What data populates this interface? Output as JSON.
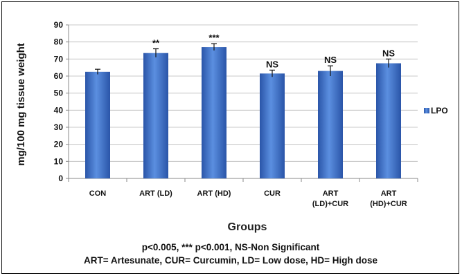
{
  "chart_data": {
    "type": "bar",
    "categories": [
      "CON",
      "ART (LD)",
      "ART (HD)",
      "CUR",
      "ART (LD)+CUR",
      "ART (HD)+CUR"
    ],
    "category_lines": [
      [
        "CON"
      ],
      [
        "ART (LD)"
      ],
      [
        "ART (HD)"
      ],
      [
        "CUR"
      ],
      [
        "ART",
        "(LD)+CUR"
      ],
      [
        "ART",
        "(HD)+CUR"
      ]
    ],
    "series": [
      {
        "name": "LPO",
        "values": [
          62.5,
          73.5,
          77,
          61.5,
          63,
          67.5
        ],
        "errors": [
          1.5,
          2.5,
          2,
          2,
          3,
          2.5
        ]
      }
    ],
    "significance": [
      "",
      "**",
      "***",
      "NS",
      "NS",
      "NS"
    ],
    "ylim": [
      0,
      90
    ],
    "yticks": [
      0,
      10,
      20,
      30,
      40,
      50,
      60,
      70,
      80,
      90
    ],
    "ylabel": "mg/100 mg tissue weight",
    "xlabel": "Groups",
    "grid": true,
    "legend_position": "right",
    "bar_color": "#3a6fc4"
  },
  "footnotes": {
    "line1": "p<0.005, *** p<0.001, NS-Non Significant",
    "line2": "ART= Artesunate, CUR= Curcumin, LD= Low dose, HD= High dose"
  }
}
